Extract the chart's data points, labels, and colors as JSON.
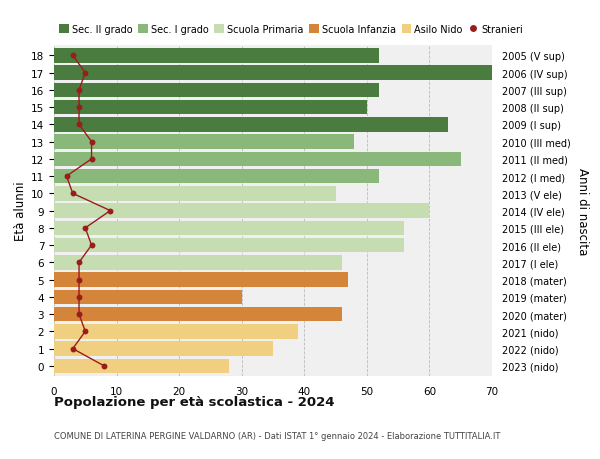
{
  "ages": [
    18,
    17,
    16,
    15,
    14,
    13,
    12,
    11,
    10,
    9,
    8,
    7,
    6,
    5,
    4,
    3,
    2,
    1,
    0
  ],
  "bar_values": [
    52,
    70,
    52,
    50,
    63,
    48,
    65,
    52,
    45,
    60,
    56,
    56,
    46,
    47,
    30,
    46,
    39,
    35,
    28
  ],
  "stranieri": [
    3,
    5,
    4,
    4,
    4,
    6,
    6,
    2,
    3,
    9,
    5,
    6,
    4,
    4,
    4,
    4,
    5,
    3,
    8
  ],
  "right_labels": [
    "2005 (V sup)",
    "2006 (IV sup)",
    "2007 (III sup)",
    "2008 (II sup)",
    "2009 (I sup)",
    "2010 (III med)",
    "2011 (II med)",
    "2012 (I med)",
    "2013 (V ele)",
    "2014 (IV ele)",
    "2015 (III ele)",
    "2016 (II ele)",
    "2017 (I ele)",
    "2018 (mater)",
    "2019 (mater)",
    "2020 (mater)",
    "2021 (nido)",
    "2022 (nido)",
    "2023 (nido)"
  ],
  "category_colors": [
    "#4a7c3f",
    "#4a7c3f",
    "#4a7c3f",
    "#4a7c3f",
    "#4a7c3f",
    "#8ab87a",
    "#8ab87a",
    "#8ab87a",
    "#c5ddb0",
    "#c5ddb0",
    "#c5ddb0",
    "#c5ddb0",
    "#c5ddb0",
    "#d4853a",
    "#d4853a",
    "#d4853a",
    "#f0d080",
    "#f0d080",
    "#f0d080"
  ],
  "stranieri_color": "#9b1c1c",
  "legend_labels": [
    "Sec. II grado",
    "Sec. I grado",
    "Scuola Primaria",
    "Scuola Infanzia",
    "Asilo Nido",
    "Stranieri"
  ],
  "legend_colors": [
    "#4a7c3f",
    "#8ab87a",
    "#c5ddb0",
    "#d4853a",
    "#f0d080",
    "#9b1c1c"
  ],
  "title": "Popolazione per età scolastica - 2024",
  "subtitle": "COMUNE DI LATERINA PERGINE VALDARNO (AR) - Dati ISTAT 1° gennaio 2024 - Elaborazione TUTTITALIA.IT",
  "ylabel_left": "Età alunni",
  "ylabel_right": "Anni di nascita",
  "xlim": [
    0,
    70
  ],
  "xticks": [
    0,
    10,
    20,
    30,
    40,
    50,
    60,
    70
  ],
  "bar_height": 0.85,
  "plot_bg": "#f0f0f0"
}
